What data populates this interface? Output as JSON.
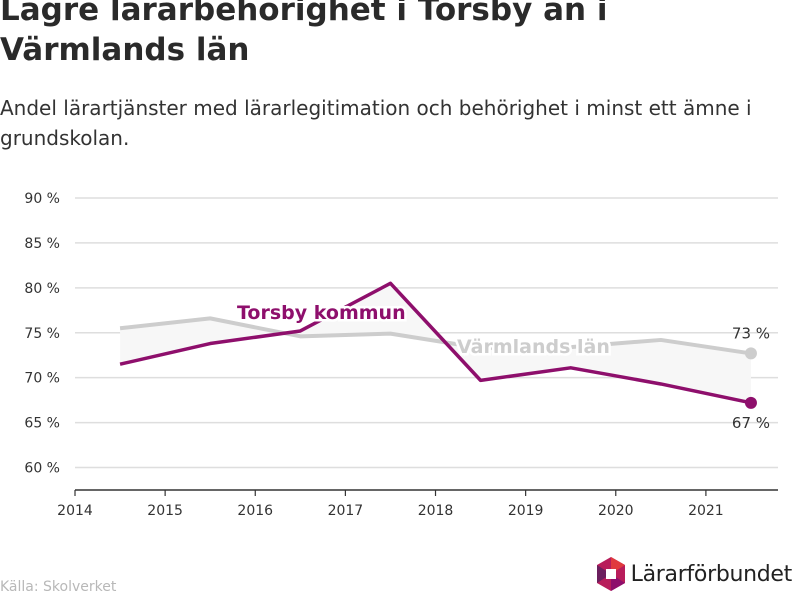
{
  "title": "Lägre lärarbehörighet i Torsby än i Värmlands län",
  "subtitle": "Andel lärartjänster med lärarlegitimation och behörighet i minst ett ämne i grundskolan.",
  "source": "Källa: Skolverket",
  "brand": {
    "name": "Lärarförbundet",
    "logo_icon": "hexagon-logo-icon"
  },
  "colors": {
    "torsby": "#8e0f6c",
    "varmland": "#cdcdcd",
    "band": "#f7f7f7",
    "grid": "#dedede"
  },
  "chart_data": {
    "type": "line",
    "title": "Lägre lärarbehörighet i Torsby än i Värmlands län",
    "subtitle": "Andel lärartjänster med lärarlegitimation och behörighet i minst ett ämne i grundskolan.",
    "xlim": [
      2014,
      2021.8
    ],
    "ylim": [
      57.5,
      92
    ],
    "x_ticks": [
      2014,
      2015,
      2016,
      2017,
      2018,
      2019,
      2020,
      2021
    ],
    "y_ticks": [
      60,
      65,
      70,
      75,
      80,
      85,
      90
    ],
    "y_tick_labels": [
      "60 %",
      "65 %",
      "70 %",
      "75 %",
      "80 %",
      "85 %",
      "90 %"
    ],
    "grid": true,
    "x": [
      2014.5,
      2015.5,
      2016.5,
      2017.5,
      2018.5,
      2019.5,
      2020.5,
      2021.5
    ],
    "series": [
      {
        "name": "Värmlands län",
        "values": [
          75.5,
          76.6,
          74.6,
          74.9,
          73.3,
          73.4,
          74.2,
          72.7
        ]
      },
      {
        "name": "Torsby kommun",
        "values": [
          71.5,
          73.8,
          75.2,
          80.5,
          69.7,
          71.1,
          69.3,
          67.2
        ]
      }
    ],
    "end_labels": {
      "varmland": "73 %",
      "torsby": "67 %"
    }
  }
}
